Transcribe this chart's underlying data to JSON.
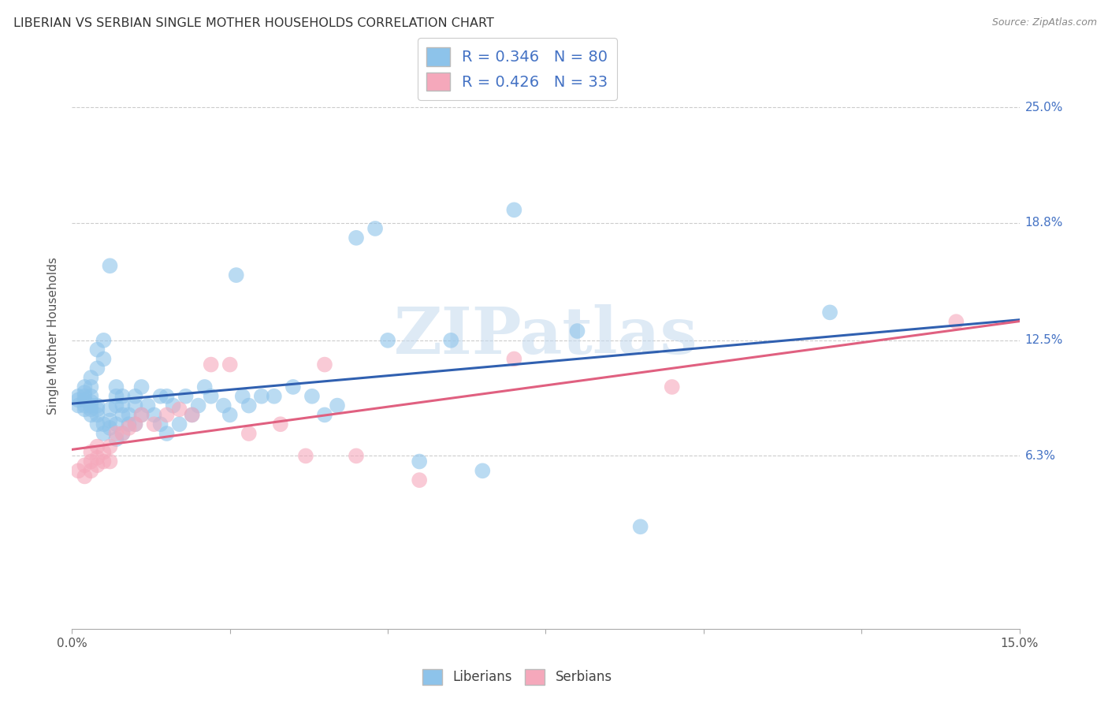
{
  "title": "LIBERIAN VS SERBIAN SINGLE MOTHER HOUSEHOLDS CORRELATION CHART",
  "source": "Source: ZipAtlas.com",
  "ylabel": "Single Mother Households",
  "ytick_labels": [
    "6.3%",
    "12.5%",
    "18.8%",
    "25.0%"
  ],
  "ytick_values": [
    0.063,
    0.125,
    0.188,
    0.25
  ],
  "xlim": [
    0.0,
    0.15
  ],
  "ylim": [
    -0.03,
    0.285
  ],
  "legend_liberian": "R = 0.346   N = 80",
  "legend_serbian": "R = 0.426   N = 33",
  "liberian_color": "#8DC3EA",
  "serbian_color": "#F5A8BB",
  "liberian_line_color": "#3060B0",
  "serbian_line_color": "#E06080",
  "right_tick_color": "#4472C4",
  "background_color": "#FFFFFF",
  "grid_color": "#CCCCCC",
  "watermark": "ZIPatlas",
  "liberian_x": [
    0.001,
    0.001,
    0.001,
    0.002,
    0.002,
    0.002,
    0.002,
    0.002,
    0.002,
    0.003,
    0.003,
    0.003,
    0.003,
    0.003,
    0.003,
    0.003,
    0.004,
    0.004,
    0.004,
    0.004,
    0.004,
    0.004,
    0.005,
    0.005,
    0.005,
    0.005,
    0.006,
    0.006,
    0.006,
    0.006,
    0.007,
    0.007,
    0.007,
    0.007,
    0.007,
    0.008,
    0.008,
    0.008,
    0.008,
    0.009,
    0.009,
    0.01,
    0.01,
    0.01,
    0.011,
    0.011,
    0.012,
    0.013,
    0.014,
    0.014,
    0.015,
    0.015,
    0.016,
    0.017,
    0.018,
    0.019,
    0.02,
    0.021,
    0.022,
    0.024,
    0.025,
    0.026,
    0.027,
    0.028,
    0.03,
    0.032,
    0.035,
    0.038,
    0.04,
    0.042,
    0.045,
    0.048,
    0.05,
    0.055,
    0.06,
    0.065,
    0.07,
    0.08,
    0.09,
    0.12
  ],
  "liberian_y": [
    0.09,
    0.093,
    0.095,
    0.088,
    0.09,
    0.093,
    0.095,
    0.097,
    0.1,
    0.085,
    0.088,
    0.09,
    0.092,
    0.095,
    0.1,
    0.105,
    0.08,
    0.085,
    0.088,
    0.09,
    0.11,
    0.12,
    0.075,
    0.08,
    0.115,
    0.125,
    0.078,
    0.082,
    0.088,
    0.165,
    0.072,
    0.08,
    0.09,
    0.095,
    0.1,
    0.075,
    0.085,
    0.09,
    0.095,
    0.08,
    0.085,
    0.08,
    0.09,
    0.095,
    0.085,
    0.1,
    0.09,
    0.085,
    0.08,
    0.095,
    0.075,
    0.095,
    0.09,
    0.08,
    0.095,
    0.085,
    0.09,
    0.1,
    0.095,
    0.09,
    0.085,
    0.16,
    0.095,
    0.09,
    0.095,
    0.095,
    0.1,
    0.095,
    0.085,
    0.09,
    0.18,
    0.185,
    0.125,
    0.06,
    0.125,
    0.055,
    0.195,
    0.13,
    0.025,
    0.14
  ],
  "serbian_x": [
    0.001,
    0.002,
    0.002,
    0.003,
    0.003,
    0.003,
    0.004,
    0.004,
    0.004,
    0.005,
    0.005,
    0.006,
    0.006,
    0.007,
    0.008,
    0.009,
    0.01,
    0.011,
    0.013,
    0.015,
    0.017,
    0.019,
    0.022,
    0.025,
    0.028,
    0.033,
    0.037,
    0.04,
    0.045,
    0.055,
    0.07,
    0.095,
    0.14
  ],
  "serbian_y": [
    0.055,
    0.052,
    0.058,
    0.055,
    0.06,
    0.065,
    0.058,
    0.062,
    0.068,
    0.06,
    0.065,
    0.06,
    0.068,
    0.075,
    0.075,
    0.078,
    0.08,
    0.085,
    0.08,
    0.085,
    0.088,
    0.085,
    0.112,
    0.112,
    0.075,
    0.08,
    0.063,
    0.112,
    0.063,
    0.05,
    0.115,
    0.1,
    0.135
  ]
}
